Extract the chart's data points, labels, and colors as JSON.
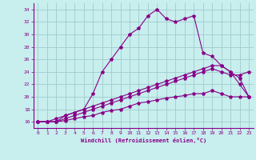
{
  "xlabel": "Windchill (Refroidissement éolien,°C)",
  "bg_color": "#c8eeee",
  "grid_color": "#a0cccc",
  "line_color": "#880088",
  "xlim": [
    -0.5,
    23.5
  ],
  "ylim": [
    15.0,
    35.0
  ],
  "yticks": [
    16,
    18,
    20,
    22,
    24,
    26,
    28,
    30,
    32,
    34
  ],
  "xticks": [
    0,
    1,
    2,
    3,
    4,
    5,
    6,
    7,
    8,
    9,
    10,
    11,
    12,
    13,
    14,
    15,
    16,
    17,
    18,
    19,
    20,
    21,
    22,
    23
  ],
  "line1_x": [
    0,
    1,
    2,
    3,
    4,
    5,
    6,
    7,
    8,
    9,
    10,
    11,
    12,
    13,
    14,
    15,
    16,
    17,
    18,
    19,
    20,
    21,
    22,
    23
  ],
  "line1_y": [
    16,
    16,
    16,
    17,
    17.5,
    18,
    20.5,
    24,
    26,
    28,
    30,
    31,
    33,
    34,
    32.5,
    32,
    32.5,
    33,
    27,
    26.5,
    25,
    24,
    22,
    20
  ],
  "line2_x": [
    0,
    1,
    2,
    3,
    4,
    5,
    6,
    7,
    8,
    9,
    10,
    11,
    12,
    13,
    14,
    15,
    16,
    17,
    18,
    19,
    20,
    21,
    22,
    23
  ],
  "line2_y": [
    16,
    16,
    16.5,
    17,
    17.5,
    18,
    18.5,
    19,
    19.5,
    20,
    20.5,
    21,
    21.5,
    22,
    22.5,
    23,
    23.5,
    24,
    24.5,
    25,
    25,
    24,
    23,
    20
  ],
  "line3_x": [
    0,
    1,
    2,
    3,
    4,
    5,
    6,
    7,
    8,
    9,
    10,
    11,
    12,
    13,
    14,
    15,
    16,
    17,
    18,
    19,
    20,
    21,
    22,
    23
  ],
  "line3_y": [
    16,
    16,
    16,
    16.5,
    17,
    17.5,
    18,
    18.5,
    19,
    19.5,
    20,
    20.5,
    21,
    21.5,
    22,
    22.5,
    23,
    23.5,
    24,
    24.5,
    24,
    23.5,
    23.5,
    24
  ],
  "line4_x": [
    0,
    1,
    2,
    3,
    4,
    5,
    6,
    7,
    8,
    9,
    10,
    11,
    12,
    13,
    14,
    15,
    16,
    17,
    18,
    19,
    20,
    21,
    22,
    23
  ],
  "line4_y": [
    16,
    16,
    16,
    16.2,
    16.5,
    16.8,
    17,
    17.5,
    17.8,
    18,
    18.5,
    19,
    19.2,
    19.5,
    19.8,
    20,
    20.2,
    20.5,
    20.5,
    21,
    20.5,
    20,
    20,
    20
  ]
}
